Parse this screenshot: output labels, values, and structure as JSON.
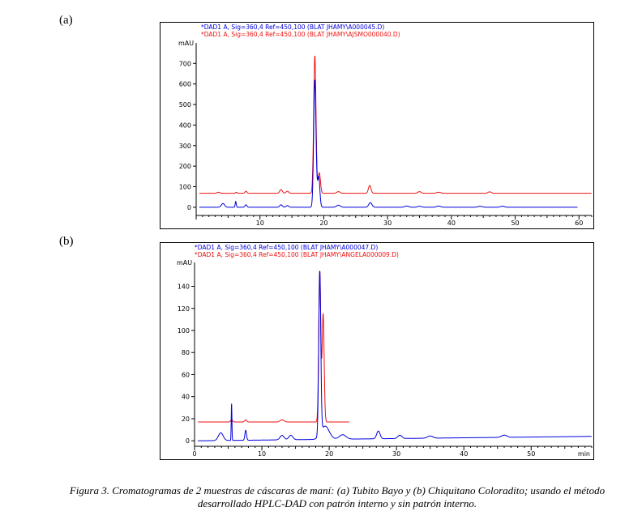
{
  "panels": [
    {
      "label": "(a)"
    },
    {
      "label": "(b)"
    }
  ],
  "caption": {
    "line1": "Figura 3. Cromatogramas de 2 muestras de cáscaras de maní: (a) Tubito Bayo y (b) Chiquitano Coloradito; usando el método",
    "line2": "desarrollado HPLC-DAD con patrón interno y sin patrón interno."
  },
  "colors": {
    "blue": "#0000dd",
    "red": "#ee1111"
  },
  "chart_data": [
    {
      "type": "line",
      "panel": "(a)",
      "ylabel": "mAU",
      "xlim": [
        0,
        62
      ],
      "ylim": [
        -40,
        780
      ],
      "xticks": [
        10,
        20,
        30,
        40,
        50,
        60
      ],
      "yticks": [
        0,
        100,
        200,
        300,
        400,
        500,
        600,
        700
      ],
      "legend": [
        "*DAD1 A, Sig=360,4 Ref=450,100 (BLAT JHAMY\\A000045.D)",
        "*DAD1 A, Sig=360,4 Ref=450,100 (BLAT JHAMY\\AJSMO000040.D)"
      ],
      "series": [
        {
          "color": "blue",
          "baseline": 0,
          "drift": 0,
          "end": 59.8,
          "peaks": [
            {
              "x": 4.2,
              "h": 18,
              "w": 0.25
            },
            {
              "x": 6.2,
              "h": 28,
              "w": 0.08
            },
            {
              "x": 7.8,
              "h": 12,
              "w": 0.15
            },
            {
              "x": 13.3,
              "h": 12,
              "w": 0.2
            },
            {
              "x": 14.3,
              "h": 8,
              "w": 0.2
            },
            {
              "x": 18.6,
              "h": 620,
              "w": 0.18
            },
            {
              "x": 19.2,
              "h": 150,
              "w": 0.18
            },
            {
              "x": 22.3,
              "h": 10,
              "w": 0.3
            },
            {
              "x": 27.3,
              "h": 22,
              "w": 0.25
            },
            {
              "x": 33.0,
              "h": 6,
              "w": 0.3
            },
            {
              "x": 35.0,
              "h": 5,
              "w": 0.3
            },
            {
              "x": 38.0,
              "h": 6,
              "w": 0.3
            },
            {
              "x": 44.5,
              "h": 5,
              "w": 0.3
            },
            {
              "x": 48.0,
              "h": 5,
              "w": 0.3
            }
          ]
        },
        {
          "color": "red",
          "baseline": 68,
          "drift": 0,
          "end": 62,
          "peaks": [
            {
              "x": 3.5,
              "h": 5,
              "w": 0.2
            },
            {
              "x": 6.3,
              "h": 5,
              "w": 0.12
            },
            {
              "x": 7.8,
              "h": 10,
              "w": 0.15
            },
            {
              "x": 13.3,
              "h": 18,
              "w": 0.2
            },
            {
              "x": 14.3,
              "h": 10,
              "w": 0.2
            },
            {
              "x": 18.6,
              "h": 670,
              "w": 0.18
            },
            {
              "x": 19.3,
              "h": 100,
              "w": 0.18
            },
            {
              "x": 22.3,
              "h": 8,
              "w": 0.25
            },
            {
              "x": 27.2,
              "h": 38,
              "w": 0.2
            },
            {
              "x": 35.0,
              "h": 8,
              "w": 0.25
            },
            {
              "x": 38.0,
              "h": 5,
              "w": 0.3
            },
            {
              "x": 46.0,
              "h": 7,
              "w": 0.25
            }
          ]
        }
      ]
    },
    {
      "type": "line",
      "panel": "(b)",
      "ylabel": "mAU",
      "xlim": [
        0,
        59
      ],
      "ylim": [
        -5,
        158
      ],
      "xticks": [
        0,
        10,
        20,
        30,
        40,
        50
      ],
      "xunit": "min",
      "yticks": [
        0,
        20,
        40,
        60,
        80,
        100,
        120,
        140
      ],
      "legend": [
        "*DAD1 A, Sig=360,4 Ref=450,100 (BLAT JHAMY\\A000047.D)",
        "*DAD1 A, Sig=360,4 Ref=450,100 (BLAT JHAMY\\ANGELA000009.D)"
      ],
      "series": [
        {
          "color": "blue",
          "baseline": 0,
          "drift": 4,
          "end": 59,
          "peaks": [
            {
              "x": 3.9,
              "h": 7,
              "w": 0.35
            },
            {
              "x": 5.5,
              "h": 34,
              "w": 0.05
            },
            {
              "x": 7.6,
              "h": 9,
              "w": 0.12
            },
            {
              "x": 13.0,
              "h": 4,
              "w": 0.3
            },
            {
              "x": 14.3,
              "h": 4,
              "w": 0.3
            },
            {
              "x": 18.6,
              "h": 148,
              "w": 0.15
            },
            {
              "x": 19.4,
              "h": 12,
              "w": 0.6
            },
            {
              "x": 22.0,
              "h": 4,
              "w": 0.5
            },
            {
              "x": 27.3,
              "h": 7,
              "w": 0.25
            },
            {
              "x": 30.5,
              "h": 3,
              "w": 0.3
            },
            {
              "x": 35.0,
              "h": 2,
              "w": 0.4
            },
            {
              "x": 46.0,
              "h": 2,
              "w": 0.4
            }
          ]
        },
        {
          "color": "red",
          "baseline": 17,
          "drift": 0,
          "end": 23,
          "peaks": [
            {
              "x": 5.5,
              "h": 2,
              "w": 0.15
            },
            {
              "x": 7.6,
              "h": 2,
              "w": 0.15
            },
            {
              "x": 13.0,
              "h": 2,
              "w": 0.3
            },
            {
              "x": 18.6,
              "h": 137,
              "w": 0.15
            },
            {
              "x": 19.1,
              "h": 98,
              "w": 0.15
            }
          ]
        }
      ]
    }
  ]
}
